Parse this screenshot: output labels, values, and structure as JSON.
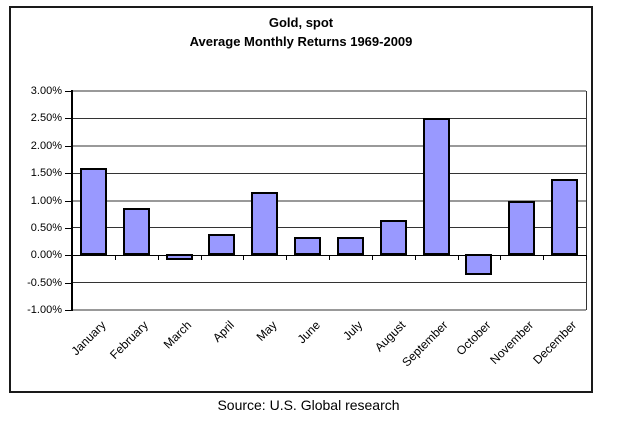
{
  "chart_data": {
    "type": "bar",
    "title": "Gold, spot",
    "subtitle": "Average Monthly Returns 1969-2009",
    "categories": [
      "January",
      "February",
      "March",
      "April",
      "May",
      "June",
      "July",
      "August",
      "September",
      "October",
      "November",
      "December"
    ],
    "values": [
      1.6,
      0.87,
      -0.05,
      0.38,
      1.15,
      0.33,
      0.33,
      0.65,
      2.5,
      -0.38,
      1.0,
      1.4
    ],
    "value_unit": "%",
    "y_tick_labels": [
      "3.00%",
      "2.50%",
      "2.00%",
      "1.50%",
      "1.00%",
      "0.50%",
      "0.00%",
      "-0.50%",
      "-1.00%"
    ],
    "ylim": [
      -1.0,
      3.0
    ],
    "y_step": 0.5,
    "xlabel": "",
    "ylabel": "",
    "legend": "none",
    "grid": true,
    "bar_color": "#9999FF",
    "bar_border_color": "#000000",
    "major_gridline_color": "#999999",
    "minor_gridline_color": "#333333",
    "axis_color": "#000000",
    "plot_background": "#ffffff"
  },
  "footer": {
    "source": "Source: U.S. Global research"
  }
}
